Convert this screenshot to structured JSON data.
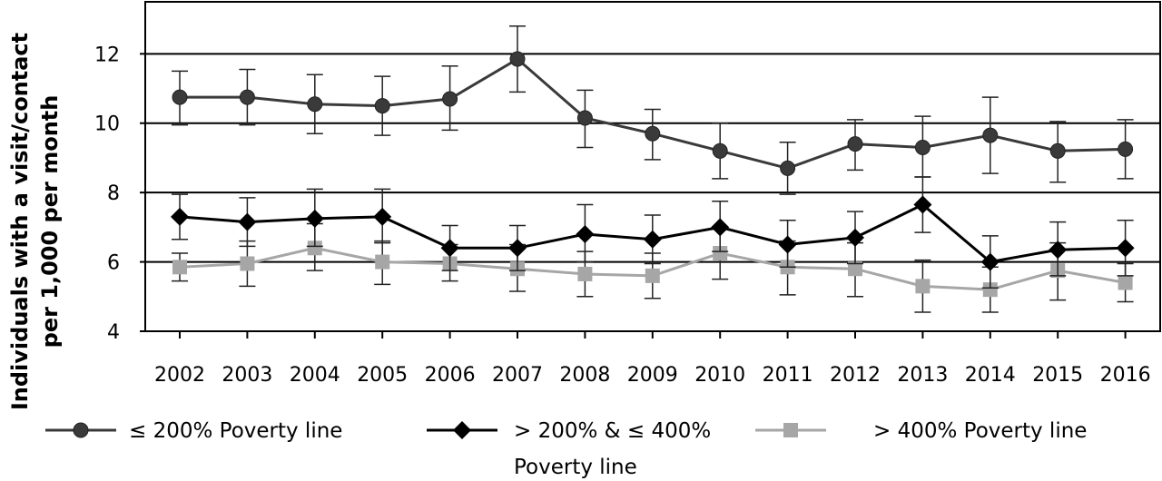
{
  "chart_data": {
    "type": "line",
    "ylabel": [
      "Individuals with a visit/contact",
      "per 1,000 per month"
    ],
    "xlabel": "",
    "ylim": [
      4,
      13.5
    ],
    "yticks": [
      4,
      6,
      8,
      10,
      12
    ],
    "x": [
      "2002",
      "2003",
      "2004",
      "2005",
      "2006",
      "2007",
      "2008",
      "2009",
      "2010",
      "2011",
      "2012",
      "2013",
      "2014",
      "2015",
      "2016"
    ],
    "grid": "horizontal",
    "legend_position": "bottom",
    "series": [
      {
        "name": "≤ 200% Poverty line",
        "color": "#3a3a3a",
        "marker": "circle",
        "values": [
          10.75,
          10.75,
          10.55,
          10.5,
          10.7,
          11.85,
          10.15,
          9.7,
          9.2,
          8.7,
          9.4,
          9.3,
          9.65,
          9.2,
          9.25
        ],
        "err_low": [
          9.95,
          9.95,
          9.7,
          9.65,
          9.8,
          10.9,
          9.3,
          8.95,
          8.4,
          7.95,
          8.65,
          8.45,
          8.55,
          8.3,
          8.4
        ],
        "err_high": [
          11.5,
          11.55,
          11.4,
          11.35,
          11.65,
          12.8,
          10.95,
          10.4,
          10.0,
          9.45,
          10.1,
          10.2,
          10.75,
          10.05,
          10.1
        ]
      },
      {
        "name": "> 200% & ≤ 400%",
        "name_line2": "Poverty line",
        "color": "#000000",
        "marker": "diamond",
        "values": [
          7.3,
          7.15,
          7.25,
          7.3,
          6.4,
          6.4,
          6.8,
          6.65,
          7.0,
          6.5,
          6.7,
          7.65,
          6.0,
          6.35,
          6.4
        ],
        "err_low": [
          6.65,
          6.45,
          6.45,
          6.55,
          5.75,
          5.75,
          6.0,
          5.95,
          6.3,
          5.85,
          5.95,
          6.85,
          5.25,
          5.6,
          5.6
        ],
        "err_high": [
          7.95,
          7.85,
          8.1,
          8.1,
          7.05,
          7.05,
          7.65,
          7.35,
          7.75,
          7.2,
          7.45,
          8.45,
          6.75,
          7.15,
          7.2
        ]
      },
      {
        "name": "> 400% Poverty line",
        "color": "#a6a6a6",
        "marker": "square",
        "values": [
          5.85,
          5.95,
          6.4,
          6.0,
          5.95,
          5.8,
          5.65,
          5.6,
          6.25,
          5.85,
          5.8,
          5.3,
          5.2,
          5.75,
          5.4
        ],
        "err_low": [
          5.45,
          5.3,
          5.75,
          5.35,
          5.45,
          5.15,
          5.0,
          4.95,
          5.5,
          5.05,
          5.0,
          4.55,
          4.55,
          4.9,
          4.85
        ],
        "err_high": [
          6.25,
          6.6,
          7.1,
          6.6,
          6.5,
          6.5,
          6.3,
          6.25,
          6.95,
          6.6,
          6.55,
          6.05,
          5.85,
          6.55,
          5.95
        ]
      }
    ]
  }
}
